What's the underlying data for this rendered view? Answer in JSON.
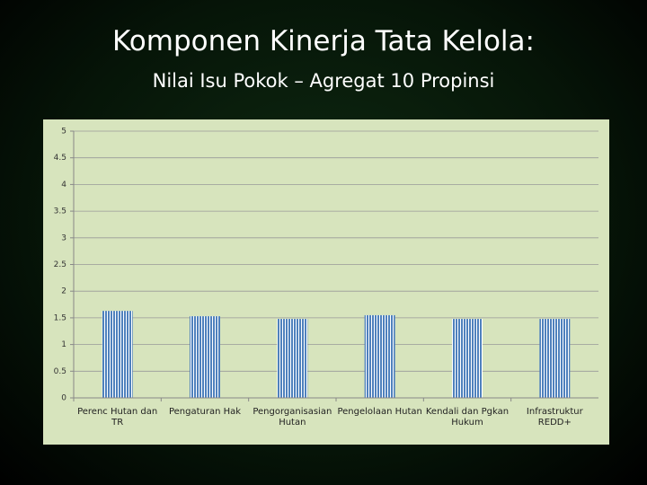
{
  "chart_data": {
    "type": "bar",
    "title": "Komponen Kinerja Tata Kelola:",
    "subtitle": "Nilai Isu Pokok – Agregat 10 Propinsi",
    "categories": [
      "Perenc Hutan dan TR",
      "Pengaturan Hak",
      "Pengorganisasian Hutan",
      "Pengelolaan Hutan",
      "Kendali dan Pgkan Hukum",
      "Infrastruktur REDD+"
    ],
    "values": [
      1.63,
      1.53,
      1.48,
      1.55,
      1.48,
      1.48
    ],
    "color": "#4f81bd",
    "ylim": [
      0,
      5
    ],
    "yticks": [
      0,
      0.5,
      1,
      1.5,
      2,
      2.5,
      3,
      3.5,
      4,
      4.5,
      5
    ],
    "grid": true
  }
}
